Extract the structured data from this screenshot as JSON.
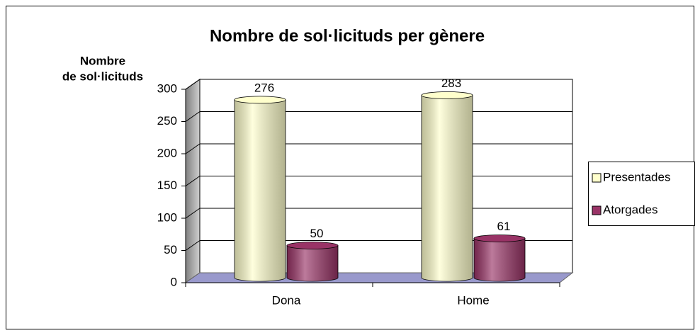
{
  "chart_data": {
    "type": "bar3d",
    "title": "Nombre de sol·licituds per gènere",
    "y_label": [
      "Nombre",
      "de sol·licituds"
    ],
    "categories": [
      "Dona",
      "Home"
    ],
    "series": [
      {
        "name": "Presentades",
        "color": "#ffffcc",
        "values": [
          276,
          283
        ]
      },
      {
        "name": "Atorgades",
        "color": "#993366",
        "values": [
          50,
          61
        ]
      }
    ],
    "ylim": [
      0,
      300
    ],
    "yticks": [
      0,
      50,
      100,
      150,
      200,
      250,
      300
    ],
    "grid": true,
    "legend": "right"
  }
}
